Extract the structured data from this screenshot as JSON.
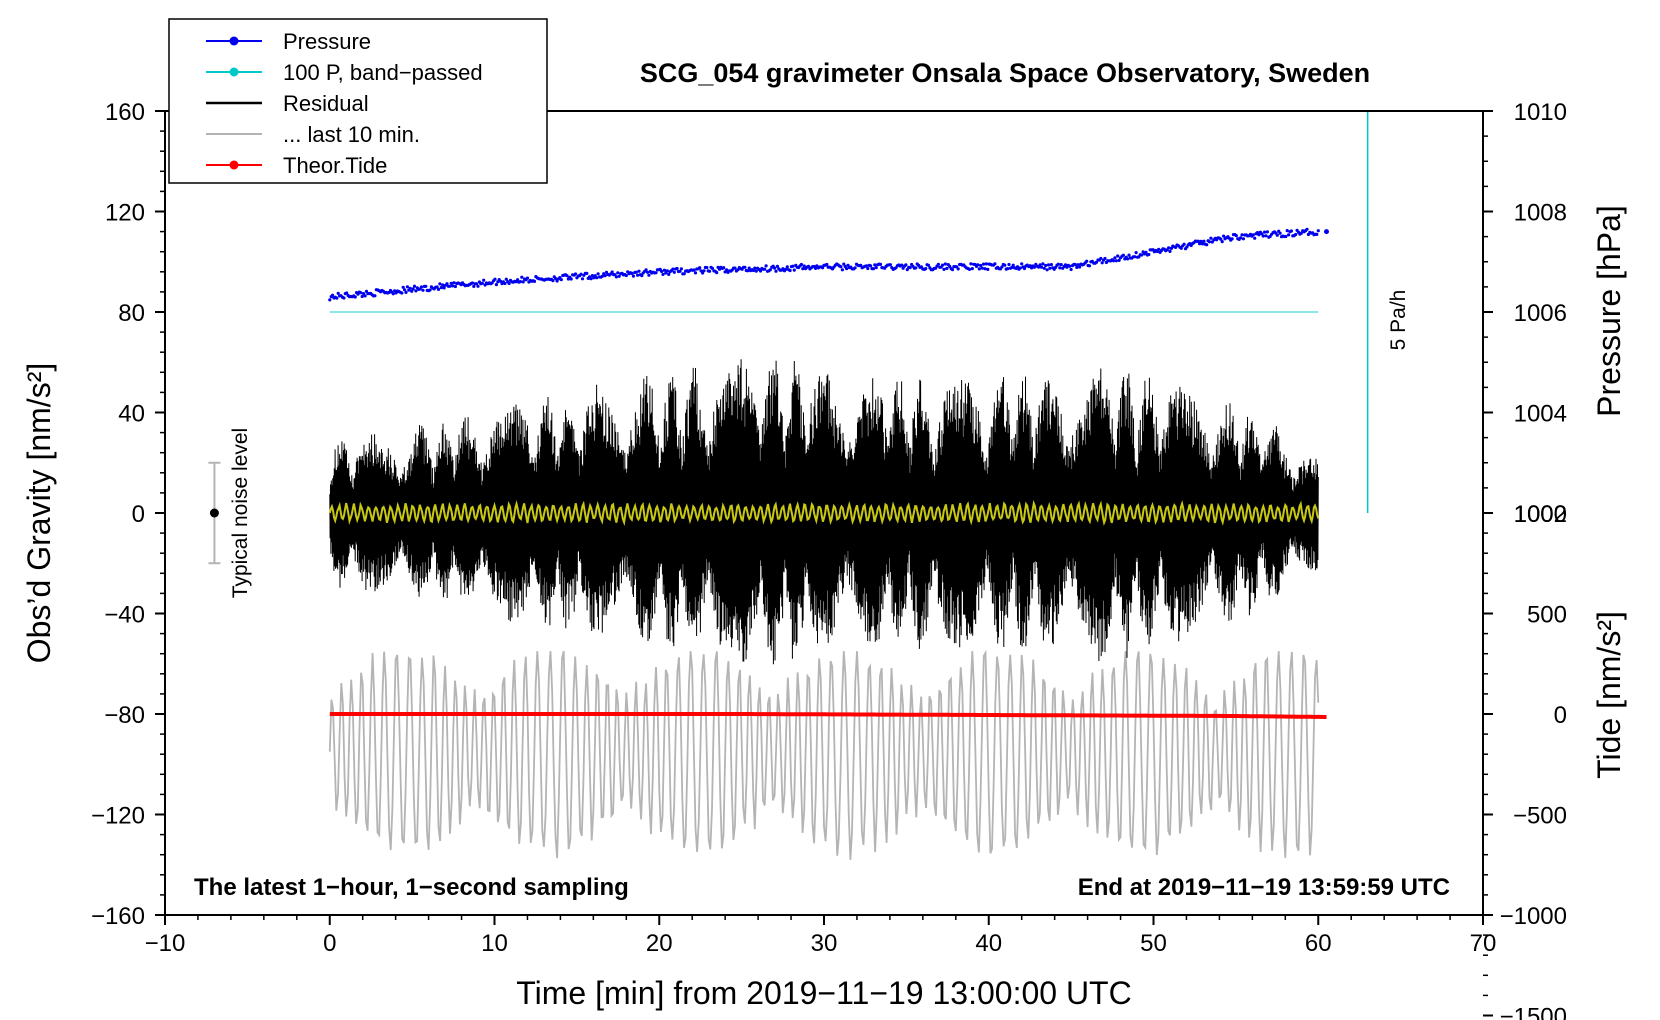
{
  "chart_data": {
    "type": "line",
    "title": "SCG_054 gravimeter Onsala Space Observatory, Sweden",
    "xlabel": "Time [min] from 2019−11−19 13:00:00 UTC",
    "ylabel": "Obs’d Gravity [nm/s²]",
    "ylabel_right_top": "Pressure [hPa]",
    "ylabel_right_bottom": "Tide [nm/s²]",
    "xlim": [
      -10,
      70
    ],
    "ylim": [
      -160,
      160
    ],
    "x_ticks": [
      "−10",
      "0",
      "10",
      "20",
      "30",
      "40",
      "50",
      "60",
      "70"
    ],
    "y_ticks": [
      "160",
      "120",
      "80",
      "40",
      "0",
      "−40",
      "−80",
      "−120",
      "−160"
    ],
    "pressure_ticks": [
      "1010",
      "1008",
      "1006",
      "1004",
      "1002"
    ],
    "tide_ticks": [
      "1000",
      "500",
      "0",
      "−500",
      "−1000",
      "−1500"
    ],
    "legend": [
      {
        "label": "Pressure",
        "color": "#0000ee",
        "marker": true
      },
      {
        "label": "100 P, band−passed",
        "color": "#00c8c8",
        "marker": true
      },
      {
        "label": "Residual",
        "color": "#000000",
        "marker": false
      },
      {
        "label": "... last 10 min.",
        "color": "#b4b4b4",
        "marker": false
      },
      {
        "label": "Theor.Tide",
        "color": "#ff0000",
        "marker": true
      }
    ],
    "series": [
      {
        "name": "Pressure",
        "axis": "pressure_hPa",
        "x": [
          0,
          10,
          20,
          30,
          40,
          45,
          50,
          55,
          60
        ],
        "values": [
          1006.3,
          1006.6,
          1006.8,
          1006.9,
          1006.9,
          1006.9,
          1007.2,
          1007.5,
          1007.6
        ]
      },
      {
        "name": "100 P, band−passed",
        "axis": "gravity",
        "x": [
          0,
          60
        ],
        "values": [
          80,
          80
        ]
      },
      {
        "name": "Residual",
        "axis": "gravity",
        "x_range": [
          0,
          60
        ],
        "amplitude_envelope": [
          {
            "x": 0,
            "amp": 30
          },
          {
            "x": 5,
            "amp": 35
          },
          {
            "x": 15,
            "amp": 50
          },
          {
            "x": 26.5,
            "amp": 65
          },
          {
            "x": 34,
            "amp": 55
          },
          {
            "x": 39.5,
            "amp": 55
          },
          {
            "x": 47.5,
            "amp": 60
          },
          {
            "x": 55,
            "amp": 45
          },
          {
            "x": 60,
            "amp": 25
          }
        ]
      },
      {
        "name": "Residual smoothed",
        "axis": "gravity",
        "x_range": [
          0,
          60
        ],
        "approx_value": 0,
        "color": "#c8c814"
      },
      {
        "name": "... last 10 min.",
        "axis": "gravity",
        "x_range": [
          0,
          60
        ],
        "center": -95,
        "approx_min": -145,
        "approx_max": -55
      },
      {
        "name": "Theor.Tide",
        "axis": "tide_nm_s2",
        "x": [
          0,
          25,
          55,
          60.5
        ],
        "values": [
          0,
          0,
          -10,
          -15
        ]
      }
    ],
    "noise_bar": {
      "label": "Typical noise level",
      "x": -7,
      "center": 0,
      "half_range": 20
    },
    "scale_bar": {
      "label": "5 Pa/h",
      "x": 63
    },
    "annotations": {
      "bottom_left": "The latest 1−hour, 1−second sampling",
      "bottom_right": "End at 2019−11−19 13:59:59 UTC"
    }
  }
}
